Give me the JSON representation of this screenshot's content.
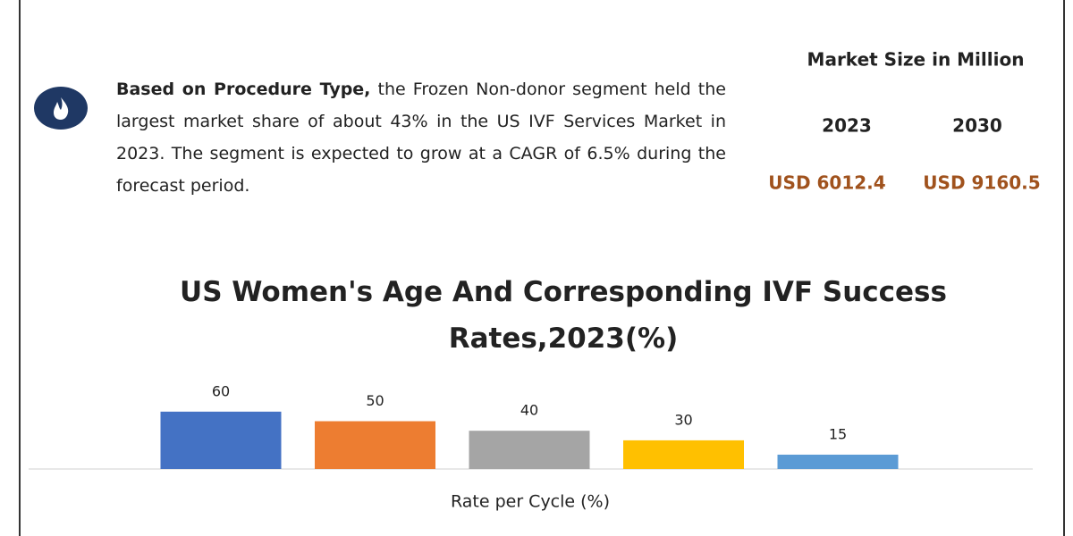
{
  "summary": {
    "lead": "Based on Procedure Type,",
    "text": "the Frozen Non-donor segment held the largest market share of about 43% in the US IVF Services Market in 2023. The segment is expected to grow at a CAGR of 6.5% during the forecast period."
  },
  "market_size": {
    "title": "Market Size in Million",
    "years": [
      "2023",
      "2030"
    ],
    "values": [
      "USD 6012.4",
      "USD 9160.5"
    ]
  },
  "chart_data": {
    "type": "bar",
    "title": "US Women's Age And Corresponding IVF Success Rates,2023(%)",
    "x_label": "Rate per Cycle (%)",
    "categories": [
      null,
      null,
      null,
      null,
      null
    ],
    "values": [
      60,
      50,
      40,
      30,
      15
    ],
    "colors": [
      "#4472c4",
      "#ed7d31",
      "#a5a5a5",
      "#ffc000",
      "#5b9bd5"
    ]
  }
}
